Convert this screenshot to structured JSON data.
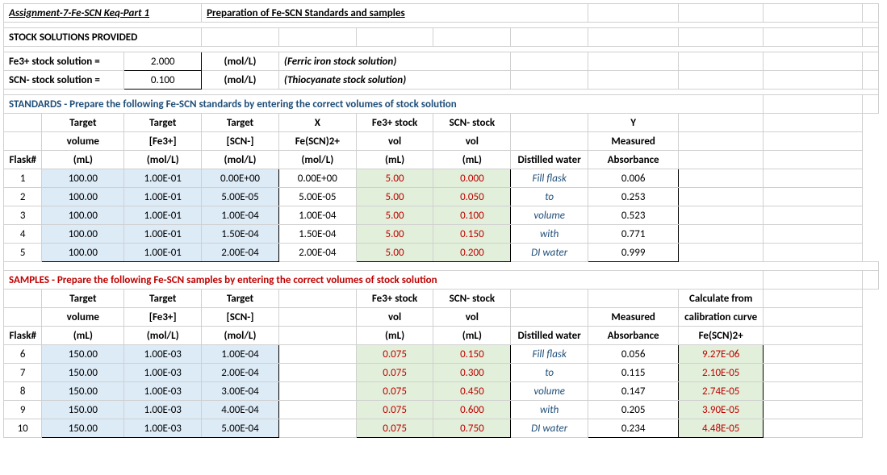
{
  "title_row": {
    "a": "Assignment-7-Fe-SCN Keq-Part 1",
    "d": "Preparation of Fe-SCN Standards and samples"
  },
  "stock_header": "STOCK SOLUTIONS PROVIDED",
  "stock": {
    "fe_label": "Fe3+ stock solution =",
    "fe_val": "2.000",
    "fe_unit": "(mol/L)",
    "fe_note": "(Ferric iron stock solution)",
    "scn_label": "SCN- stock solution =",
    "scn_val": "0.100",
    "scn_unit": "(mol/L)",
    "scn_note": "(Thiocyanate stock solution)"
  },
  "std_title": "STANDARDS - Prepare the following Fe-SCN standards by entering the correct volumes of stock solution",
  "std_head": {
    "r1": [
      "",
      "Target",
      "Target",
      "Target",
      "X",
      "Fe3+ stock",
      "SCN- stock",
      "",
      "Y",
      ""
    ],
    "r2": [
      "",
      "volume",
      "[Fe3+]",
      "[SCN-]",
      "Fe(SCN)2+",
      "vol",
      "vol",
      "",
      "Measured",
      ""
    ],
    "r3": [
      "Flask#",
      "(mL)",
      "(mol/L)",
      "(mol/L)",
      "(mol/L)",
      "(mL)",
      "(mL)",
      "Distilled water",
      "Absorbance",
      ""
    ]
  },
  "std_rows": [
    {
      "f": "1",
      "vol": "100.00",
      "fe": "1.00E-01",
      "scn": "0.00E+00",
      "x": "0.00E+00",
      "fevol": "5.00",
      "scnvol": "0.000",
      "dw": "Fill flask",
      "abs": "0.006"
    },
    {
      "f": "2",
      "vol": "100.00",
      "fe": "1.00E-01",
      "scn": "5.00E-05",
      "x": "5.00E-05",
      "fevol": "5.00",
      "scnvol": "0.050",
      "dw": "to",
      "abs": "0.253"
    },
    {
      "f": "3",
      "vol": "100.00",
      "fe": "1.00E-01",
      "scn": "1.00E-04",
      "x": "1.00E-04",
      "fevol": "5.00",
      "scnvol": "0.100",
      "dw": "volume",
      "abs": "0.523"
    },
    {
      "f": "4",
      "vol": "100.00",
      "fe": "1.00E-01",
      "scn": "1.50E-04",
      "x": "1.50E-04",
      "fevol": "5.00",
      "scnvol": "0.150",
      "dw": "with",
      "abs": "0.771"
    },
    {
      "f": "5",
      "vol": "100.00",
      "fe": "1.00E-01",
      "scn": "2.00E-04",
      "x": "2.00E-04",
      "fevol": "5.00",
      "scnvol": "0.200",
      "dw": "DI water",
      "abs": "0.999"
    }
  ],
  "smp_title": "SAMPLES - Prepare the following Fe-SCN samples by entering the correct volumes of stock solution",
  "smp_head": {
    "r1": [
      "",
      "Target",
      "Target",
      "Target",
      "",
      "Fe3+ stock",
      "SCN- stock",
      "",
      "",
      "Calculate from"
    ],
    "r2": [
      "",
      "volume",
      "[Fe3+]",
      "[SCN-]",
      "",
      "vol",
      "vol",
      "",
      "Measured",
      "calibration curve"
    ],
    "r3": [
      "Flask#",
      "(mL)",
      "(mol/L)",
      "(mol/L)",
      "",
      "(mL)",
      "(mL)",
      "Distilled water",
      "Absorbance",
      "Fe(SCN)2+"
    ]
  },
  "smp_rows": [
    {
      "f": "6",
      "vol": "150.00",
      "fe": "1.00E-03",
      "scn": "1.00E-04",
      "fevol": "0.075",
      "scnvol": "0.150",
      "dw": "Fill flask",
      "abs": "0.056",
      "calc": "9.27E-06"
    },
    {
      "f": "7",
      "vol": "150.00",
      "fe": "1.00E-03",
      "scn": "2.00E-04",
      "fevol": "0.075",
      "scnvol": "0.300",
      "dw": "to",
      "abs": "0.115",
      "calc": "2.10E-05"
    },
    {
      "f": "8",
      "vol": "150.00",
      "fe": "1.00E-03",
      "scn": "3.00E-04",
      "fevol": "0.075",
      "scnvol": "0.450",
      "dw": "volume",
      "abs": "0.147",
      "calc": "2.74E-05"
    },
    {
      "f": "9",
      "vol": "150.00",
      "fe": "1.00E-03",
      "scn": "4.00E-04",
      "fevol": "0.075",
      "scnvol": "0.600",
      "dw": "with",
      "abs": "0.205",
      "calc": "3.90E-05"
    },
    {
      "f": "10",
      "vol": "150.00",
      "fe": "1.00E-03",
      "scn": "5.00E-04",
      "fevol": "0.075",
      "scnvol": "0.750",
      "dw": "DI water",
      "abs": "0.234",
      "calc": "4.48E-05"
    }
  ]
}
